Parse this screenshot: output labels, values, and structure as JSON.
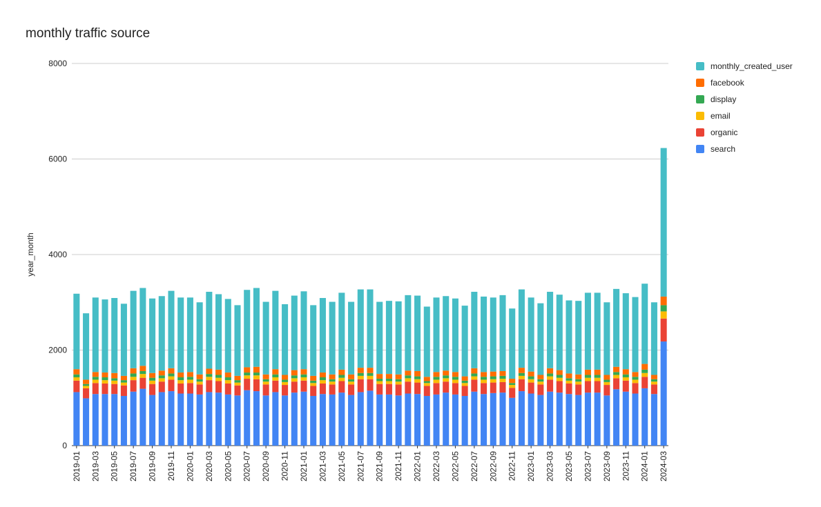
{
  "chart_data": {
    "type": "bar",
    "stacked": true,
    "title": "monthly traffic source",
    "xlabel": "",
    "ylabel": "year_month",
    "ylim": [
      0,
      8000
    ],
    "yticks": [
      0,
      2000,
      4000,
      6000,
      8000
    ],
    "grid": true,
    "legend_position": "right",
    "categories": [
      "2019-01",
      "2019-02",
      "2019-03",
      "2019-04",
      "2019-05",
      "2019-06",
      "2019-07",
      "2019-08",
      "2019-09",
      "2019-10",
      "2019-11",
      "2019-12",
      "2020-01",
      "2020-02",
      "2020-03",
      "2020-04",
      "2020-05",
      "2020-06",
      "2020-07",
      "2020-08",
      "2020-09",
      "2020-10",
      "2020-11",
      "2020-12",
      "2021-01",
      "2021-02",
      "2021-03",
      "2021-04",
      "2021-05",
      "2021-06",
      "2021-07",
      "2021-08",
      "2021-09",
      "2021-10",
      "2021-11",
      "2021-12",
      "2022-01",
      "2022-02",
      "2022-03",
      "2022-04",
      "2022-05",
      "2022-06",
      "2022-07",
      "2022-08",
      "2022-09",
      "2022-10",
      "2022-11",
      "2022-12",
      "2023-01",
      "2023-02",
      "2023-03",
      "2023-04",
      "2023-05",
      "2023-06",
      "2023-07",
      "2023-08",
      "2023-09",
      "2023-10",
      "2023-11",
      "2023-12",
      "2024-01",
      "2024-02",
      "2024-03"
    ],
    "xtick_labels": [
      "2019-01",
      "2019-03",
      "2019-05",
      "2019-07",
      "2019-09",
      "2019-11",
      "2020-01",
      "2020-03",
      "2020-05",
      "2020-07",
      "2020-09",
      "2020-11",
      "2021-01",
      "2021-03",
      "2021-05",
      "2021-07",
      "2021-09",
      "2021-11",
      "2022-01",
      "2022-03",
      "2022-05",
      "2022-07",
      "2022-09",
      "2022-11",
      "2023-01",
      "2023-03",
      "2023-05",
      "2023-07",
      "2023-09",
      "2023-11",
      "2024-01",
      "2024-03"
    ],
    "series": [
      {
        "name": "search",
        "color": "#4285f4",
        "values": [
          1120,
          990,
          1080,
          1080,
          1080,
          1040,
          1130,
          1190,
          1060,
          1120,
          1140,
          1090,
          1090,
          1070,
          1120,
          1110,
          1070,
          1050,
          1160,
          1140,
          1050,
          1120,
          1050,
          1110,
          1130,
          1040,
          1080,
          1070,
          1110,
          1060,
          1120,
          1150,
          1070,
          1070,
          1050,
          1090,
          1080,
          1040,
          1070,
          1110,
          1070,
          1040,
          1130,
          1080,
          1100,
          1110,
          1000,
          1140,
          1090,
          1060,
          1130,
          1110,
          1080,
          1060,
          1110,
          1110,
          1050,
          1180,
          1130,
          1090,
          1200,
          1080,
          2180
        ]
      },
      {
        "name": "organic",
        "color": "#ea4335",
        "values": [
          240,
          210,
          230,
          220,
          210,
          220,
          240,
          230,
          230,
          220,
          240,
          210,
          220,
          210,
          250,
          240,
          230,
          210,
          240,
          250,
          230,
          240,
          220,
          230,
          230,
          210,
          220,
          210,
          240,
          220,
          270,
          240,
          220,
          220,
          230,
          250,
          240,
          210,
          240,
          230,
          240,
          210,
          250,
          230,
          220,
          220,
          210,
          250,
          230,
          220,
          250,
          240,
          220,
          220,
          240,
          240,
          220,
          230,
          230,
          220,
          240,
          200,
          480
        ]
      },
      {
        "name": "email",
        "color": "#fbbc04",
        "values": [
          70,
          50,
          70,
          70,
          70,
          60,
          70,
          80,
          70,
          70,
          70,
          70,
          70,
          60,
          70,
          70,
          70,
          60,
          70,
          80,
          60,
          70,
          60,
          70,
          70,
          60,
          70,
          60,
          70,
          60,
          70,
          70,
          60,
          60,
          60,
          70,
          70,
          60,
          70,
          70,
          70,
          60,
          70,
          70,
          70,
          70,
          60,
          70,
          70,
          60,
          70,
          70,
          60,
          60,
          70,
          70,
          60,
          70,
          70,
          70,
          80,
          60,
          150
        ]
      },
      {
        "name": "display",
        "color": "#34a853",
        "values": [
          60,
          40,
          60,
          60,
          50,
          50,
          70,
          60,
          60,
          60,
          60,
          60,
          60,
          50,
          60,
          60,
          60,
          50,
          60,
          60,
          50,
          60,
          50,
          60,
          60,
          50,
          60,
          50,
          60,
          50,
          60,
          60,
          50,
          50,
          50,
          60,
          60,
          40,
          60,
          60,
          60,
          50,
          60,
          60,
          60,
          60,
          40,
          60,
          60,
          50,
          60,
          60,
          50,
          50,
          60,
          60,
          50,
          60,
          60,
          60,
          70,
          50,
          130
        ]
      },
      {
        "name": "facebook",
        "color": "#ff6d01",
        "values": [
          110,
          90,
          100,
          100,
          110,
          90,
          110,
          110,
          100,
          100,
          110,
          100,
          100,
          100,
          110,
          110,
          100,
          90,
          110,
          120,
          100,
          110,
          100,
          110,
          110,
          100,
          100,
          100,
          110,
          100,
          110,
          110,
          100,
          100,
          100,
          100,
          110,
          90,
          100,
          100,
          100,
          90,
          110,
          100,
          100,
          100,
          90,
          110,
          100,
          90,
          110,
          100,
          100,
          100,
          110,
          110,
          100,
          110,
          110,
          100,
          120,
          90,
          180
        ]
      },
      {
        "name": "monthly_created_user",
        "color": "#46bdc6",
        "values": [
          1580,
          1390,
          1560,
          1530,
          1570,
          1510,
          1620,
          1630,
          1560,
          1560,
          1620,
          1570,
          1560,
          1510,
          1610,
          1580,
          1540,
          1480,
          1620,
          1650,
          1520,
          1640,
          1480,
          1560,
          1630,
          1480,
          1560,
          1520,
          1610,
          1520,
          1640,
          1640,
          1510,
          1530,
          1530,
          1580,
          1580,
          1470,
          1560,
          1560,
          1540,
          1480,
          1600,
          1580,
          1550,
          1590,
          1470,
          1640,
          1550,
          1500,
          1600,
          1580,
          1530,
          1540,
          1610,
          1610,
          1520,
          1630,
          1590,
          1570,
          1680,
          1520,
          3110
        ]
      }
    ],
    "legend_order": [
      "monthly_created_user",
      "facebook",
      "display",
      "email",
      "organic",
      "search"
    ]
  }
}
